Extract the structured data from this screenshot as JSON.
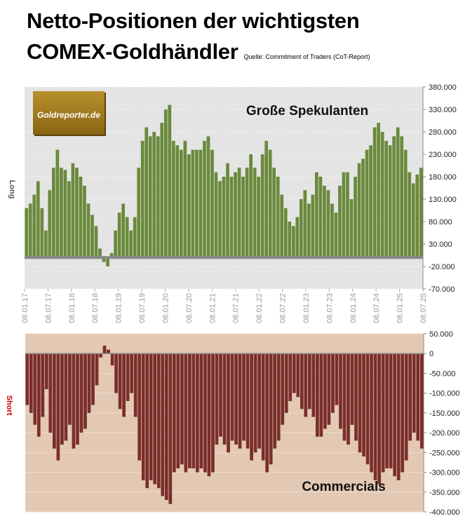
{
  "title_line1": "Netto-Positionen der wichtigsten",
  "title_line2": "COMEX-Goldhändler",
  "source": "Quelle: Commitment of Traders (CoT-Report)",
  "logo_text": "Goldreporter.de",
  "colors": {
    "speculators": "#6a8a3c",
    "commercials": "#7a2e2b",
    "top_bg": "#e4e4e4",
    "bottom_bg": "#e3c9b4",
    "short_label": "#cc0000"
  },
  "chart_data": [
    {
      "type": "bar",
      "title": "Große Spekulanten",
      "ylabel": "Long",
      "ylim": [
        -70000,
        380000
      ],
      "yticks": [
        "380.000",
        "330.000",
        "280.000",
        "230.000",
        "180.000",
        "130.000",
        "80.000",
        "30.000",
        "-20.000",
        "-70.000"
      ],
      "ytick_values": [
        380000,
        330000,
        280000,
        230000,
        180000,
        130000,
        80000,
        30000,
        -20000,
        -70000
      ],
      "xticks": [
        "08.01.17",
        "08.07.17",
        "08.01.18",
        "08.07.18",
        "08.01.19",
        "08.07.19",
        "08.01.20",
        "08.07.20",
        "08.01.21",
        "08.07.21",
        "08.01.22",
        "08.07.22",
        "08.01.23",
        "08.07.23",
        "08.01.24",
        "08.07.24",
        "08.01.25",
        "08.07.25"
      ],
      "x_range": [
        "2017-01",
        "2025-07"
      ],
      "grid": true,
      "values": [
        110000,
        120000,
        140000,
        170000,
        110000,
        60000,
        150000,
        200000,
        240000,
        200000,
        195000,
        170000,
        210000,
        200000,
        180000,
        160000,
        120000,
        95000,
        70000,
        20000,
        -10000,
        -20000,
        10000,
        60000,
        100000,
        120000,
        90000,
        60000,
        90000,
        200000,
        260000,
        290000,
        270000,
        280000,
        270000,
        300000,
        330000,
        340000,
        260000,
        250000,
        240000,
        260000,
        230000,
        240000,
        240000,
        240000,
        260000,
        270000,
        240000,
        190000,
        170000,
        180000,
        210000,
        180000,
        190000,
        200000,
        180000,
        200000,
        230000,
        200000,
        180000,
        230000,
        260000,
        240000,
        200000,
        180000,
        140000,
        110000,
        80000,
        70000,
        90000,
        130000,
        150000,
        120000,
        140000,
        190000,
        180000,
        160000,
        150000,
        120000,
        100000,
        160000,
        190000,
        190000,
        130000,
        180000,
        210000,
        220000,
        240000,
        250000,
        290000,
        300000,
        280000,
        260000,
        250000,
        270000,
        290000,
        270000,
        240000,
        190000,
        165000,
        185000,
        200000
      ]
    },
    {
      "type": "bar",
      "title": "Commercials",
      "ylabel": "Short",
      "ylim": [
        -400000,
        50000
      ],
      "yticks": [
        "50.000",
        "0",
        "-50.000",
        "-100.000",
        "-150.000",
        "-200.000",
        "-250.000",
        "-300.000",
        "-350.000",
        "-400.000"
      ],
      "ytick_values": [
        50000,
        0,
        -50000,
        -100000,
        -150000,
        -200000,
        -250000,
        -300000,
        -350000,
        -400000
      ],
      "x_range": [
        "2017-01",
        "2025-07"
      ],
      "grid": true,
      "values": [
        -130000,
        -150000,
        -180000,
        -210000,
        -160000,
        -90000,
        -200000,
        -240000,
        -270000,
        -230000,
        -220000,
        -180000,
        -240000,
        -230000,
        -200000,
        -190000,
        -150000,
        -130000,
        -80000,
        -10000,
        20000,
        10000,
        -30000,
        -100000,
        -140000,
        -160000,
        -120000,
        -100000,
        -160000,
        -270000,
        -320000,
        -340000,
        -320000,
        -330000,
        -340000,
        -360000,
        -370000,
        -380000,
        -300000,
        -290000,
        -280000,
        -300000,
        -290000,
        -290000,
        -300000,
        -290000,
        -300000,
        -310000,
        -300000,
        -230000,
        -210000,
        -230000,
        -250000,
        -220000,
        -230000,
        -240000,
        -220000,
        -240000,
        -270000,
        -250000,
        -240000,
        -270000,
        -300000,
        -280000,
        -240000,
        -220000,
        -180000,
        -150000,
        -120000,
        -100000,
        -110000,
        -140000,
        -160000,
        -140000,
        -160000,
        -210000,
        -210000,
        -190000,
        -180000,
        -150000,
        -130000,
        -190000,
        -220000,
        -230000,
        -180000,
        -220000,
        -250000,
        -260000,
        -280000,
        -300000,
        -320000,
        -330000,
        -300000,
        -290000,
        -290000,
        -310000,
        -320000,
        -300000,
        -270000,
        -220000,
        -200000,
        -220000,
        -240000
      ]
    }
  ]
}
